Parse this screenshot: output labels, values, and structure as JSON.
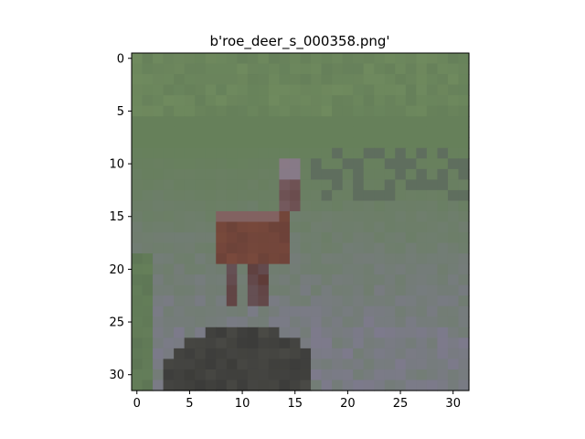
{
  "figure": {
    "title": "b'roe_deer_s_000358.png'"
  },
  "image": {
    "subject": "roe deer in grass field",
    "grid_size": 32,
    "palette": {
      "grass_light": "#6f8a5e",
      "grass_mid": "#66805a",
      "grass_dark": "#586f52",
      "lavender": "#7d7a8c",
      "lavender_dark": "#6e6b7a",
      "deer_body": "#7a4a3c",
      "deer_shadow": "#5e3a36",
      "deer_head": "#8a7a86",
      "ground_dark": "#3c3c3a",
      "ground_mid": "#4d4d48"
    }
  },
  "axes": {
    "x_ticks": [
      "0",
      "5",
      "10",
      "15",
      "20",
      "25",
      "30"
    ],
    "y_ticks": [
      "0",
      "5",
      "10",
      "15",
      "20",
      "25",
      "30"
    ],
    "x_tick_values": [
      0,
      5,
      10,
      15,
      20,
      25,
      30
    ],
    "y_tick_values": [
      0,
      5,
      10,
      15,
      20,
      25,
      30
    ],
    "xlim": [
      -0.5,
      31.5
    ],
    "ylim": [
      31.5,
      -0.5
    ]
  }
}
